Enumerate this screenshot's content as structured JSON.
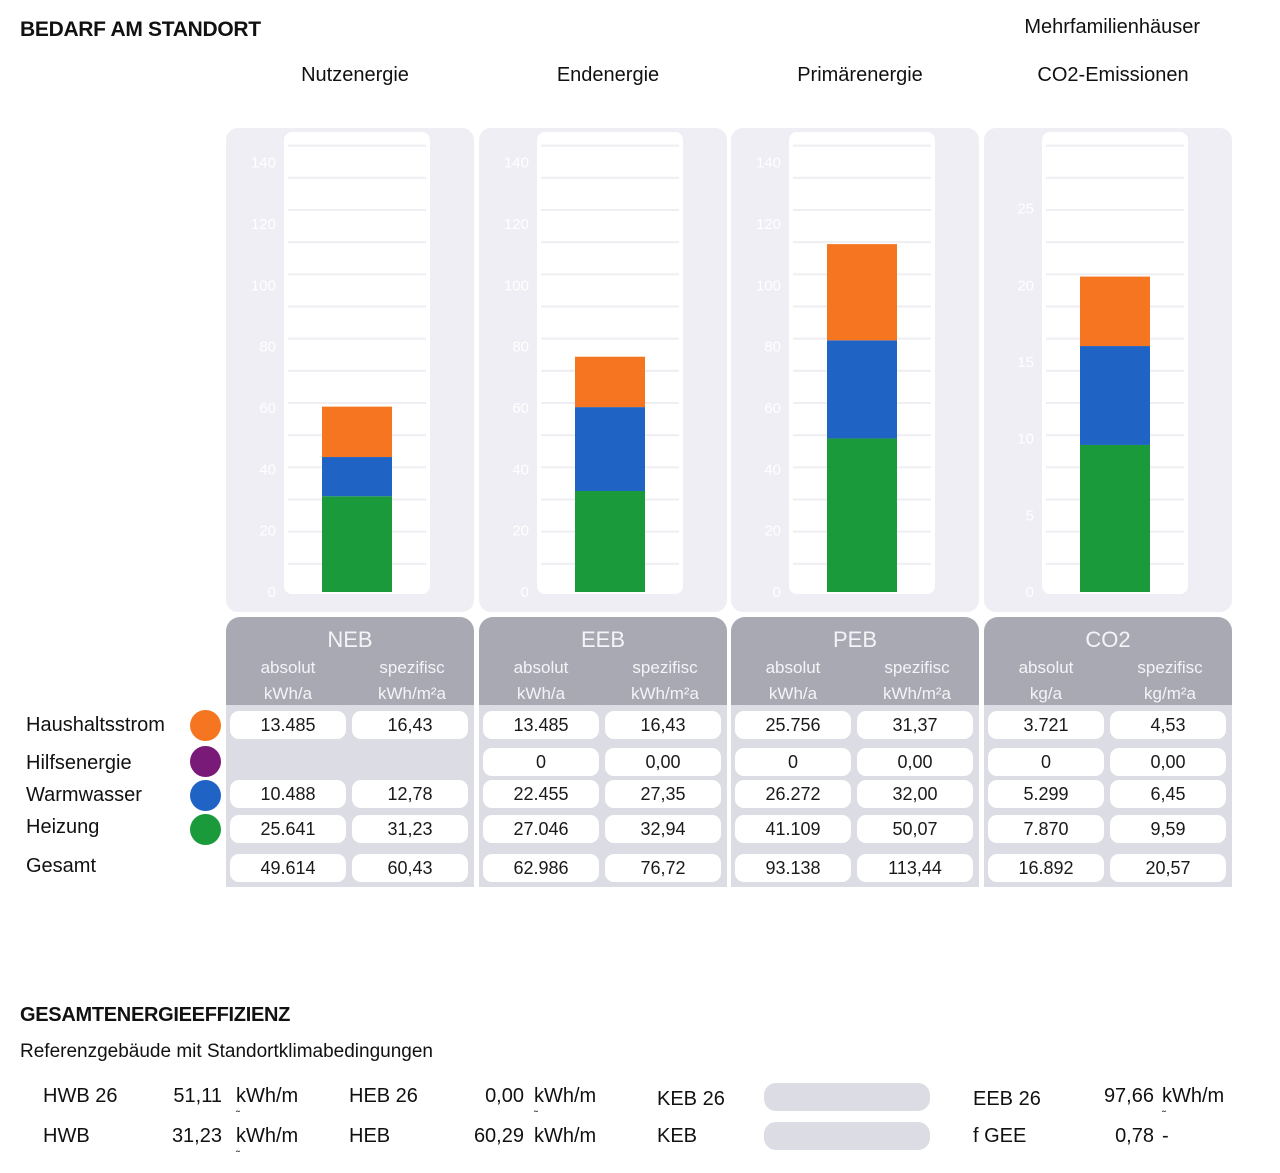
{
  "header": {
    "title": "BEDARF AM STANDORT",
    "category": "Mehrfamilienhäuser"
  },
  "chart_data": {
    "type": "bar",
    "stacked": true,
    "title": "",
    "categories": [
      "Nutzenergie",
      "Endenergie",
      "Primärenergie",
      "CO2-Emissionen"
    ],
    "series": [
      {
        "name": "Heizung",
        "color": "#1a9a3a",
        "values": [
          31.23,
          32.94,
          50.07,
          9.59
        ]
      },
      {
        "name": "Warmwasser",
        "color": "#1f63c4",
        "values": [
          12.78,
          27.35,
          32.0,
          6.45
        ]
      },
      {
        "name": "Hilfsenergie",
        "color": "#7a1a78",
        "values": [
          0,
          0.0,
          0.0,
          0.0
        ]
      },
      {
        "name": "Haushaltsstrom",
        "color": "#f57520",
        "values": [
          16.43,
          16.43,
          31.37,
          4.53
        ]
      }
    ],
    "axes": [
      {
        "ylim": [
          0,
          150
        ],
        "ticks": [
          "0",
          "20",
          "40",
          "60",
          "80",
          "100",
          "120",
          "140"
        ]
      },
      {
        "ylim": [
          0,
          150
        ],
        "ticks": [
          "0",
          "20",
          "40",
          "60",
          "80",
          "100",
          "120",
          "140"
        ]
      },
      {
        "ylim": [
          0,
          150
        ],
        "ticks": [
          "0",
          "20",
          "40",
          "60",
          "80",
          "100",
          "120",
          "140"
        ]
      },
      {
        "ylim": [
          0,
          30
        ],
        "ticks": [
          "0",
          "5",
          "10",
          "15",
          "20",
          "25"
        ]
      }
    ],
    "grid": true,
    "legend": "left"
  },
  "table": {
    "groups": [
      {
        "code": "NEB",
        "col1": [
          "absolut",
          "kWh/a"
        ],
        "col2": [
          "spezifisc",
          "kWh/m²a"
        ]
      },
      {
        "code": "EEB",
        "col1": [
          "absolut",
          "kWh/a"
        ],
        "col2": [
          "spezifisc",
          "kWh/m²a"
        ]
      },
      {
        "code": "PEB",
        "col1": [
          "absolut",
          "kWh/a"
        ],
        "col2": [
          "spezifisc",
          "kWh/m²a"
        ]
      },
      {
        "code": "CO2",
        "col1": [
          "absolut",
          "kg/a"
        ],
        "col2": [
          "spezifisc",
          "kg/m²a"
        ]
      }
    ],
    "rows": [
      {
        "label": "Haushaltsstrom",
        "color": "#f57520",
        "values": [
          [
            "13.485",
            "16,43"
          ],
          [
            "13.485",
            "16,43"
          ],
          [
            "25.756",
            "31,37"
          ],
          [
            "3.721",
            "4,53"
          ]
        ]
      },
      {
        "label": "Hilfsenergie",
        "color": "#7a1a78",
        "values": [
          null,
          [
            "0",
            "0,00"
          ],
          [
            "0",
            "0,00"
          ],
          [
            "0",
            "0,00"
          ]
        ]
      },
      {
        "label": "Warmwasser",
        "color": "#1f63c4",
        "values": [
          [
            "10.488",
            "12,78"
          ],
          [
            "22.455",
            "27,35"
          ],
          [
            "26.272",
            "32,00"
          ],
          [
            "5.299",
            "6,45"
          ]
        ]
      },
      {
        "label": "Heizung",
        "color": "#1a9a3a",
        "values": [
          [
            "25.641",
            "31,23"
          ],
          [
            "27.046",
            "32,94"
          ],
          [
            "41.109",
            "50,07"
          ],
          [
            "7.870",
            "9,59"
          ]
        ]
      },
      {
        "label": "Gesamt",
        "color": null,
        "values": [
          [
            "49.614",
            "60,43"
          ],
          [
            "62.986",
            "76,72"
          ],
          [
            "93.138",
            "113,44"
          ],
          [
            "16.892",
            "20,57"
          ]
        ]
      }
    ]
  },
  "efficiency": {
    "title": "GESAMTENERGIEEFFIZIENZ",
    "subtitle": "Referenzgebäude mit Standortklimabedingungen",
    "rows": [
      [
        {
          "label": "HWB 26",
          "value": "51,11",
          "unit": "kWh/m"
        },
        {
          "label": "HEB 26",
          "value": "0,00",
          "unit": "kWh/m"
        },
        {
          "label": "KEB 26",
          "value": null,
          "unit": ""
        },
        {
          "label": "EEB 26",
          "value": "97,66",
          "unit": "kWh/m"
        }
      ],
      [
        {
          "label": "HWB",
          "value": "31,23",
          "unit": "kWh/m"
        },
        {
          "label": "HEB",
          "value": "60,29",
          "unit": "kWh/m"
        },
        {
          "label": "KEB",
          "value": null,
          "unit": ""
        },
        {
          "label": "f GEE",
          "value": "0,78",
          "unit": "-"
        }
      ]
    ]
  }
}
